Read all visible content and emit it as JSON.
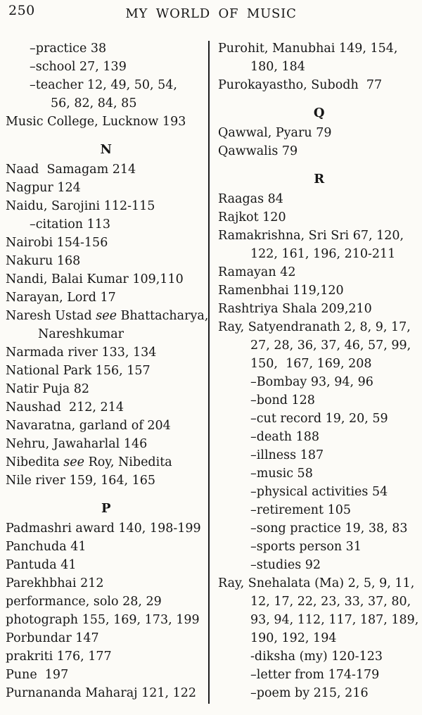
{
  "page": {
    "number": "250",
    "header_title": "MY WORLD OF MUSIC"
  },
  "index": {
    "left_column": {
      "lines": [
        {
          "type": "sub",
          "indent": 1,
          "text": "–practice 38"
        },
        {
          "type": "sub",
          "indent": 1,
          "text": "–school 27, 139"
        },
        {
          "type": "sub",
          "indent": 1,
          "text": "–teacher 12, 49, 50, 54,"
        },
        {
          "type": "cont",
          "indent": 3,
          "text": "56, 82, 84, 85"
        },
        {
          "type": "entry",
          "indent": 0,
          "text": "Music College, Lucknow 193"
        },
        {
          "type": "heading",
          "text": "N"
        },
        {
          "type": "entry",
          "indent": 0,
          "text": "Naad  Samagam 214"
        },
        {
          "type": "entry",
          "indent": 0,
          "text": "Nagpur 124"
        },
        {
          "type": "entry",
          "indent": 0,
          "text": "Naidu, Sarojini 112-115"
        },
        {
          "type": "sub",
          "indent": 1,
          "text": "–citation 113"
        },
        {
          "type": "entry",
          "indent": 0,
          "text": "Nairobi 154-156"
        },
        {
          "type": "entry",
          "indent": 0,
          "text": "Nakuru 168"
        },
        {
          "type": "entry",
          "indent": 0,
          "text": "Nandi, Balai Kumar 109,110"
        },
        {
          "type": "entry",
          "indent": 0,
          "text": "Narayan, Lord 17"
        },
        {
          "type": "entry",
          "indent": 0,
          "segments": [
            {
              "text": "Naresh Ustad "
            },
            {
              "text": "see",
              "italic": true
            },
            {
              "text": " Bhattacharya,"
            }
          ]
        },
        {
          "type": "cont",
          "indent": 2,
          "text": "Nareshkumar"
        },
        {
          "type": "entry",
          "indent": 0,
          "text": "Narmada river 133, 134"
        },
        {
          "type": "entry",
          "indent": 0,
          "text": "National Park 156, 157"
        },
        {
          "type": "entry",
          "indent": 0,
          "text": "Natir Puja 82"
        },
        {
          "type": "entry",
          "indent": 0,
          "text": "Naushad  212, 214"
        },
        {
          "type": "entry",
          "indent": 0,
          "text": "Navaratna, garland of 204"
        },
        {
          "type": "entry",
          "indent": 0,
          "text": "Nehru, Jawaharlal 146"
        },
        {
          "type": "entry",
          "indent": 0,
          "segments": [
            {
              "text": "Nibedita "
            },
            {
              "text": "see",
              "italic": true
            },
            {
              "text": " Roy, Nibedita"
            }
          ]
        },
        {
          "type": "entry",
          "indent": 0,
          "text": "Nile river 159, 164, 165"
        },
        {
          "type": "heading",
          "text": "P"
        },
        {
          "type": "entry",
          "indent": 0,
          "text": "Padmashri award 140, 198-199"
        },
        {
          "type": "entry",
          "indent": 0,
          "text": "Panchuda 41"
        },
        {
          "type": "entry",
          "indent": 0,
          "text": "Pantuda 41"
        },
        {
          "type": "entry",
          "indent": 0,
          "text": "Parekhbhai 212"
        },
        {
          "type": "entry",
          "indent": 0,
          "text": "performance, solo 28, 29"
        },
        {
          "type": "entry",
          "indent": 0,
          "text": "photograph 155, 169, 173, 199"
        },
        {
          "type": "entry",
          "indent": 0,
          "text": "Porbundar 147"
        },
        {
          "type": "entry",
          "indent": 0,
          "text": "prakriti 176, 177"
        },
        {
          "type": "entry",
          "indent": 0,
          "text": "Pune  197"
        },
        {
          "type": "entry",
          "indent": 0,
          "text": "Purnananda Maharaj 121, 122"
        }
      ]
    },
    "right_column": {
      "lines": [
        {
          "type": "entry",
          "indent": 0,
          "text": "Purohit, Manubhai 149, 154,"
        },
        {
          "type": "cont",
          "indent": 2,
          "text": "180, 184"
        },
        {
          "type": "entry",
          "indent": 0,
          "text": "Purokayastho, Subodh  77"
        },
        {
          "type": "heading",
          "text": "Q"
        },
        {
          "type": "entry",
          "indent": 0,
          "text": "Qawwal, Pyaru 79"
        },
        {
          "type": "entry",
          "indent": 0,
          "text": "Qawwalis 79"
        },
        {
          "type": "heading",
          "text": "R"
        },
        {
          "type": "entry",
          "indent": 0,
          "text": "Raagas 84"
        },
        {
          "type": "entry",
          "indent": 0,
          "text": "Rajkot 120"
        },
        {
          "type": "entry",
          "indent": 0,
          "text": "Ramakrishna, Sri Sri 67, 120,"
        },
        {
          "type": "cont",
          "indent": 2,
          "text": "122, 161, 196, 210-211"
        },
        {
          "type": "entry",
          "indent": 0,
          "text": "Ramayan 42"
        },
        {
          "type": "entry",
          "indent": 0,
          "text": "Ramenbhai 119,120"
        },
        {
          "type": "entry",
          "indent": 0,
          "text": "Rashtriya Shala 209,210"
        },
        {
          "type": "entry",
          "indent": 0,
          "text": "Ray, Satyendranath 2, 8, 9, 17,"
        },
        {
          "type": "cont",
          "indent": 2,
          "text": "27, 28, 36, 37, 46, 57, 99,"
        },
        {
          "type": "cont",
          "indent": 2,
          "text": "150,  167, 169, 208"
        },
        {
          "type": "sub",
          "indent": 2,
          "text": "–Bombay 93, 94, 96"
        },
        {
          "type": "sub",
          "indent": 2,
          "text": "–bond 128"
        },
        {
          "type": "sub",
          "indent": 2,
          "text": "–cut record 19, 20, 59"
        },
        {
          "type": "sub",
          "indent": 2,
          "text": "–death 188"
        },
        {
          "type": "sub",
          "indent": 2,
          "text": "–illness 187"
        },
        {
          "type": "sub",
          "indent": 2,
          "text": "–music 58"
        },
        {
          "type": "sub",
          "indent": 2,
          "text": "–physical activities 54"
        },
        {
          "type": "sub",
          "indent": 2,
          "text": "–retirement 105"
        },
        {
          "type": "sub",
          "indent": 2,
          "text": "–song practice 19, 38, 83"
        },
        {
          "type": "sub",
          "indent": 2,
          "text": "–sports person 31"
        },
        {
          "type": "sub",
          "indent": 2,
          "text": "–studies 92"
        },
        {
          "type": "entry",
          "indent": 0,
          "text": "Ray, Snehalata (Ma) 2, 5, 9, 11,"
        },
        {
          "type": "cont",
          "indent": 2,
          "text": "12, 17, 22, 23, 33, 37, 80,"
        },
        {
          "type": "cont",
          "indent": 2,
          "text": "93, 94, 112, 117, 187, 189,"
        },
        {
          "type": "cont",
          "indent": 2,
          "text": "190, 192, 194"
        },
        {
          "type": "sub",
          "indent": 2,
          "text": "-diksha (my) 120-123"
        },
        {
          "type": "sub",
          "indent": 2,
          "text": "–letter from 174-179"
        },
        {
          "type": "sub",
          "indent": 2,
          "text": "–poem by 215, 216"
        }
      ]
    }
  }
}
